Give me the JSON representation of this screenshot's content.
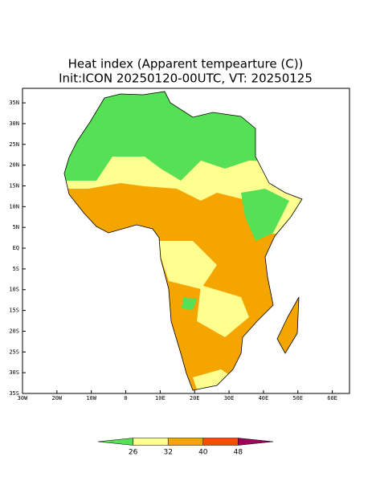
{
  "title": "Heat index (Apparent tempearture (C))",
  "subtitle": "Init:ICON 20250120-00UTC, VT: 20250125",
  "map": {
    "xlim": [
      -30,
      65
    ],
    "ylim": [
      -35,
      38.5
    ],
    "xticks": [
      {
        "value": -30,
        "label": "30W"
      },
      {
        "value": -20,
        "label": "20W"
      },
      {
        "value": -10,
        "label": "10W"
      },
      0,
      {
        "value": 10,
        "label": "10E"
      },
      {
        "value": 20,
        "label": "20E"
      },
      {
        "value": 30,
        "label": "30E"
      },
      {
        "value": 40,
        "label": "40E"
      },
      {
        "value": 50,
        "label": "50E"
      },
      {
        "value": 60,
        "label": "60E"
      }
    ],
    "yticks": [
      {
        "value": 35,
        "label": "35N"
      },
      {
        "value": 30,
        "label": "30N"
      },
      {
        "value": 25,
        "label": "25N"
      },
      {
        "value": 20,
        "label": "20N"
      },
      {
        "value": 15,
        "label": "15N"
      },
      {
        "value": 10,
        "label": "10N"
      },
      {
        "value": 5,
        "label": "5N"
      },
      {
        "value": 0,
        "label": "EQ"
      },
      {
        "value": -5,
        "label": "5S"
      },
      {
        "value": -10,
        "label": "10S"
      },
      {
        "value": -15,
        "label": "15S"
      },
      {
        "value": -20,
        "label": "20S"
      },
      {
        "value": -25,
        "label": "25S"
      },
      {
        "value": -30,
        "label": "30S"
      },
      {
        "value": -35,
        "label": "35S"
      }
    ]
  },
  "colorbar": {
    "ticks": [
      26,
      32,
      40,
      48
    ],
    "colors": [
      "#55e055",
      "#ffff90",
      "#f5a500",
      "#ff4a00",
      "#a0005a"
    ]
  }
}
